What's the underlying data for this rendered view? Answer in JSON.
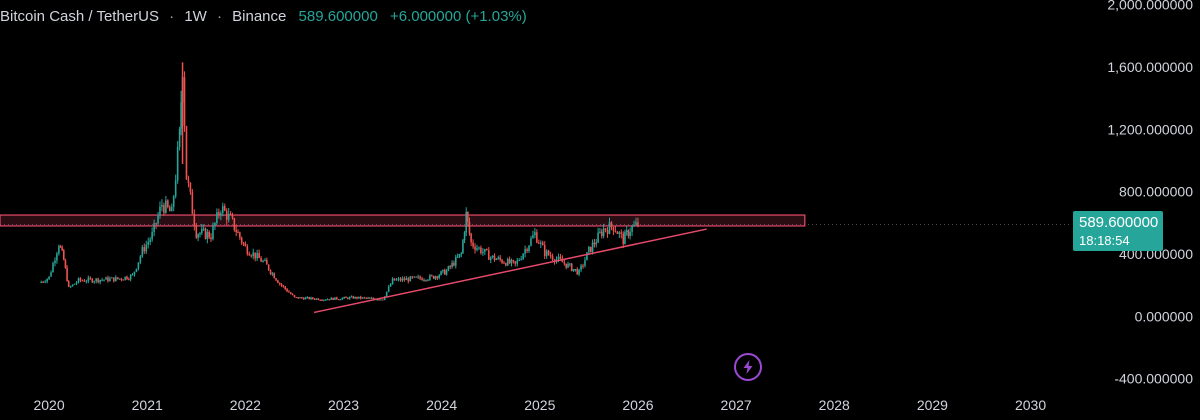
{
  "header": {
    "pair": "Bitcoin Cash / TetherUS",
    "interval": "1W",
    "exchange": "Binance",
    "price": "589.600000",
    "change": "+6.000000 (+1.03%)",
    "separator": "·"
  },
  "price_tag": {
    "price": "589.600000",
    "countdown": "18:18:54"
  },
  "colors": {
    "up": "#26a69a",
    "down": "#ef5350",
    "annotation": "#e84a6a",
    "accent": "#9c4ad6"
  },
  "icons": {
    "bolt": "lightning-bolt-icon"
  },
  "chart_data": {
    "type": "candlestick",
    "title": "Bitcoin Cash / TetherUS · 1W · Binance",
    "x_axis": {
      "ticks": [
        "2020",
        "2021",
        "2022",
        "2023",
        "2024",
        "2025",
        "2026",
        "2027",
        "2028",
        "2029",
        "2030"
      ],
      "range": [
        2019.5,
        2030.3
      ]
    },
    "y_axis": {
      "ticks": [
        "2,000.000000",
        "1,600.000000",
        "1,200.000000",
        "800.000000",
        "400.000000",
        "0.000000",
        "-400.000000"
      ],
      "tick_values": [
        2000,
        1600,
        1200,
        800,
        400,
        0,
        -400
      ],
      "range": [
        -460,
        2030
      ]
    },
    "last_price": 589.6,
    "series": [
      {
        "points": [
          {
            "x": 2019.9,
            "y": 215
          },
          {
            "x": 2020.0,
            "y": 250
          },
          {
            "x": 2020.1,
            "y": 470
          },
          {
            "x": 2020.15,
            "y": 360
          },
          {
            "x": 2020.2,
            "y": 180
          },
          {
            "x": 2020.3,
            "y": 230
          },
          {
            "x": 2020.5,
            "y": 235
          },
          {
            "x": 2020.7,
            "y": 240
          },
          {
            "x": 2020.85,
            "y": 260
          },
          {
            "x": 2020.95,
            "y": 420
          },
          {
            "x": 2021.05,
            "y": 520
          },
          {
            "x": 2021.15,
            "y": 720
          },
          {
            "x": 2021.25,
            "y": 660
          },
          {
            "x": 2021.33,
            "y": 1150
          },
          {
            "x": 2021.36,
            "y": 1630
          },
          {
            "x": 2021.4,
            "y": 900
          },
          {
            "x": 2021.5,
            "y": 540
          },
          {
            "x": 2021.65,
            "y": 520
          },
          {
            "x": 2021.75,
            "y": 700
          },
          {
            "x": 2021.85,
            "y": 620
          },
          {
            "x": 2022.0,
            "y": 440
          },
          {
            "x": 2022.2,
            "y": 340
          },
          {
            "x": 2022.35,
            "y": 210
          },
          {
            "x": 2022.5,
            "y": 120
          },
          {
            "x": 2022.8,
            "y": 110
          },
          {
            "x": 2023.1,
            "y": 120
          },
          {
            "x": 2023.4,
            "y": 110
          },
          {
            "x": 2023.5,
            "y": 230
          },
          {
            "x": 2023.7,
            "y": 240
          },
          {
            "x": 2023.9,
            "y": 250
          },
          {
            "x": 2024.05,
            "y": 290
          },
          {
            "x": 2024.2,
            "y": 400
          },
          {
            "x": 2024.25,
            "y": 650
          },
          {
            "x": 2024.3,
            "y": 470
          },
          {
            "x": 2024.5,
            "y": 380
          },
          {
            "x": 2024.75,
            "y": 330
          },
          {
            "x": 2024.95,
            "y": 530
          },
          {
            "x": 2025.05,
            "y": 410
          },
          {
            "x": 2025.25,
            "y": 340
          },
          {
            "x": 2025.4,
            "y": 280
          },
          {
            "x": 2025.5,
            "y": 420
          },
          {
            "x": 2025.65,
            "y": 560
          },
          {
            "x": 2025.75,
            "y": 580
          },
          {
            "x": 2025.85,
            "y": 490
          },
          {
            "x": 2025.92,
            "y": 560
          },
          {
            "x": 2026.0,
            "y": 589.6
          }
        ]
      }
    ],
    "annotations": [
      {
        "type": "horizontal-zone",
        "y_range": [
          580,
          650
        ],
        "x_range": [
          2019.5,
          2027.7
        ]
      },
      {
        "type": "trendline",
        "from": {
          "x": 2022.7,
          "y": 25
        },
        "to": {
          "x": 2026.7,
          "y": 560
        }
      }
    ]
  }
}
